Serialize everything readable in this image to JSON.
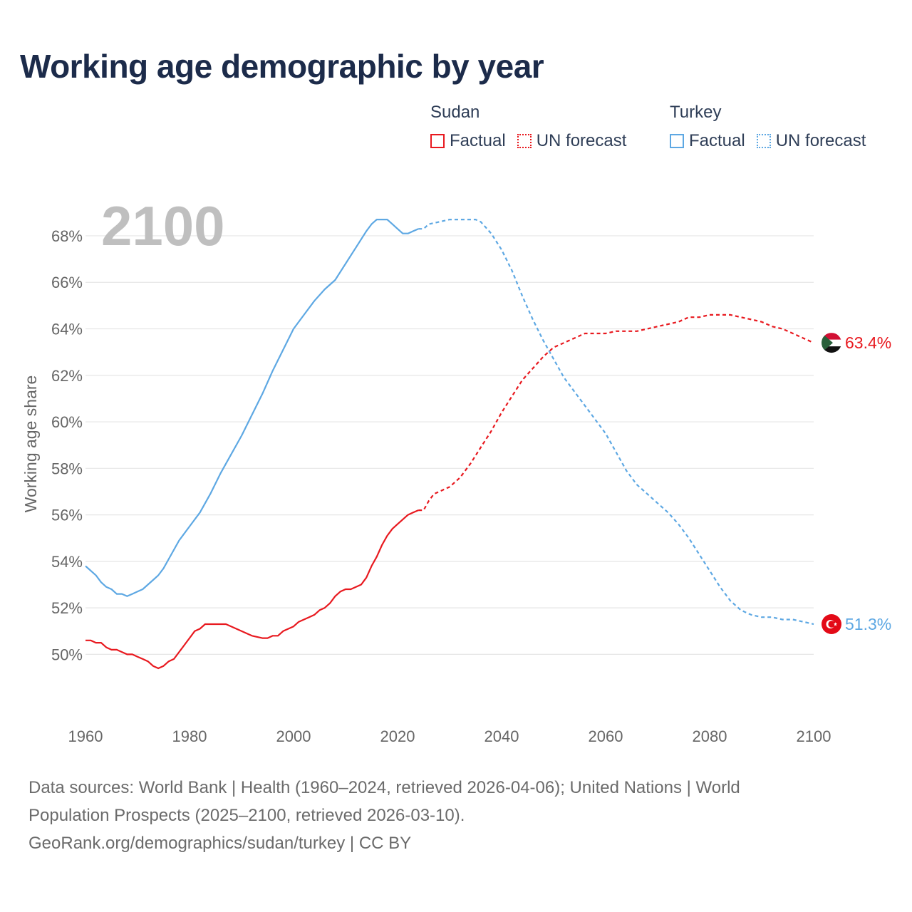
{
  "title": "Working age demographic by year",
  "legend": {
    "groups": [
      {
        "name": "Sudan",
        "color": "#e8191f",
        "factual_label": "Factual",
        "forecast_label": "UN forecast"
      },
      {
        "name": "Turkey",
        "color": "#5ea8e3",
        "factual_label": "Factual",
        "forecast_label": "UN forecast"
      }
    ]
  },
  "footer": {
    "line1": "Data sources: World Bank | Health (1960–2024, retrieved 2026-04-06); United Nations | World",
    "line2": "Population Prospects (2025–2100, retrieved 2026-03-10).",
    "line3": "GeoRank.org/demographics/sudan/turkey | CC BY"
  },
  "chart_data": {
    "type": "line",
    "title": "Working age demographic by year",
    "year_display": "2100",
    "xlabel": "",
    "ylabel": "Working age share",
    "xlim": [
      1960,
      2100
    ],
    "ylim": [
      47.5,
      69.5
    ],
    "xticks": [
      1960,
      1980,
      2000,
      2020,
      2040,
      2060,
      2080,
      2100
    ],
    "yticks": [
      50,
      52,
      54,
      56,
      58,
      60,
      62,
      64,
      66,
      68
    ],
    "ytick_suffix": "%",
    "grid": "horizontal",
    "factual_end_year": 2024,
    "series": [
      {
        "name": "Sudan",
        "color": "#e8191f",
        "end_label": "63.4%",
        "end_value": 63.4,
        "flag": "sudan",
        "x": [
          1960,
          1961,
          1962,
          1963,
          1964,
          1965,
          1966,
          1967,
          1968,
          1969,
          1970,
          1971,
          1972,
          1973,
          1974,
          1975,
          1976,
          1977,
          1978,
          1979,
          1980,
          1981,
          1982,
          1983,
          1984,
          1986,
          1987,
          1988,
          1990,
          1992,
          1994,
          1995,
          1996,
          1997,
          1998,
          1999,
          2000,
          2001,
          2002,
          2003,
          2004,
          2005,
          2006,
          2007,
          2008,
          2009,
          2010,
          2011,
          2012,
          2013,
          2014,
          2015,
          2016,
          2017,
          2018,
          2019,
          2020,
          2021,
          2022,
          2023,
          2024,
          2025,
          2026,
          2027,
          2028,
          2030,
          2032,
          2034,
          2036,
          2038,
          2040,
          2042,
          2044,
          2046,
          2048,
          2050,
          2052,
          2054,
          2056,
          2058,
          2060,
          2062,
          2064,
          2066,
          2068,
          2070,
          2072,
          2074,
          2076,
          2078,
          2080,
          2082,
          2084,
          2086,
          2088,
          2090,
          2092,
          2094,
          2096,
          2098,
          2100
        ],
        "y": [
          50.6,
          50.6,
          50.5,
          50.5,
          50.3,
          50.2,
          50.2,
          50.1,
          50.0,
          50.0,
          49.9,
          49.8,
          49.7,
          49.5,
          49.4,
          49.5,
          49.7,
          49.8,
          50.1,
          50.4,
          50.7,
          51.0,
          51.1,
          51.3,
          51.3,
          51.3,
          51.3,
          51.2,
          51.0,
          50.8,
          50.7,
          50.7,
          50.8,
          50.8,
          51.0,
          51.1,
          51.2,
          51.4,
          51.5,
          51.6,
          51.7,
          51.9,
          52.0,
          52.2,
          52.5,
          52.7,
          52.8,
          52.8,
          52.9,
          53.0,
          53.3,
          53.8,
          54.2,
          54.7,
          55.1,
          55.4,
          55.6,
          55.8,
          56.0,
          56.1,
          56.2,
          56.2,
          56.6,
          56.9,
          57.0,
          57.2,
          57.6,
          58.2,
          58.9,
          59.6,
          60.4,
          61.1,
          61.8,
          62.3,
          62.8,
          63.2,
          63.4,
          63.6,
          63.8,
          63.8,
          63.8,
          63.9,
          63.9,
          63.9,
          64.0,
          64.1,
          64.2,
          64.3,
          64.5,
          64.5,
          64.6,
          64.6,
          64.6,
          64.5,
          64.4,
          64.3,
          64.1,
          64.0,
          63.8,
          63.6,
          63.4
        ]
      },
      {
        "name": "Turkey",
        "color": "#5ea8e3",
        "end_label": "51.3%",
        "end_value": 51.3,
        "flag": "turkey",
        "x": [
          1960,
          1961,
          1962,
          1963,
          1964,
          1965,
          1966,
          1967,
          1968,
          1969,
          1970,
          1971,
          1972,
          1973,
          1974,
          1975,
          1976,
          1978,
          1980,
          1982,
          1984,
          1986,
          1988,
          1990,
          1992,
          1994,
          1996,
          1998,
          2000,
          2002,
          2004,
          2006,
          2008,
          2010,
          2012,
          2014,
          2015,
          2016,
          2017,
          2018,
          2019,
          2020,
          2021,
          2022,
          2023,
          2024,
          2025,
          2026,
          2028,
          2030,
          2032,
          2034,
          2035,
          2036,
          2038,
          2040,
          2042,
          2044,
          2046,
          2048,
          2050,
          2052,
          2054,
          2056,
          2058,
          2060,
          2062,
          2064,
          2066,
          2068,
          2070,
          2072,
          2074,
          2076,
          2078,
          2080,
          2082,
          2084,
          2086,
          2088,
          2090,
          2092,
          2094,
          2096,
          2098,
          2100
        ],
        "y": [
          53.8,
          53.6,
          53.4,
          53.1,
          52.9,
          52.8,
          52.6,
          52.6,
          52.5,
          52.6,
          52.7,
          52.8,
          53.0,
          53.2,
          53.4,
          53.7,
          54.1,
          54.9,
          55.5,
          56.1,
          56.9,
          57.8,
          58.6,
          59.4,
          60.3,
          61.2,
          62.2,
          63.1,
          64.0,
          64.6,
          65.2,
          65.7,
          66.1,
          66.8,
          67.5,
          68.2,
          68.5,
          68.7,
          68.7,
          68.7,
          68.5,
          68.3,
          68.1,
          68.1,
          68.2,
          68.3,
          68.3,
          68.5,
          68.6,
          68.7,
          68.7,
          68.7,
          68.7,
          68.6,
          68.1,
          67.4,
          66.5,
          65.4,
          64.4,
          63.5,
          62.7,
          61.9,
          61.3,
          60.7,
          60.1,
          59.5,
          58.7,
          57.9,
          57.3,
          56.9,
          56.5,
          56.1,
          55.6,
          55.0,
          54.3,
          53.6,
          52.9,
          52.3,
          51.9,
          51.7,
          51.6,
          51.6,
          51.5,
          51.5,
          51.4,
          51.3
        ]
      }
    ]
  }
}
